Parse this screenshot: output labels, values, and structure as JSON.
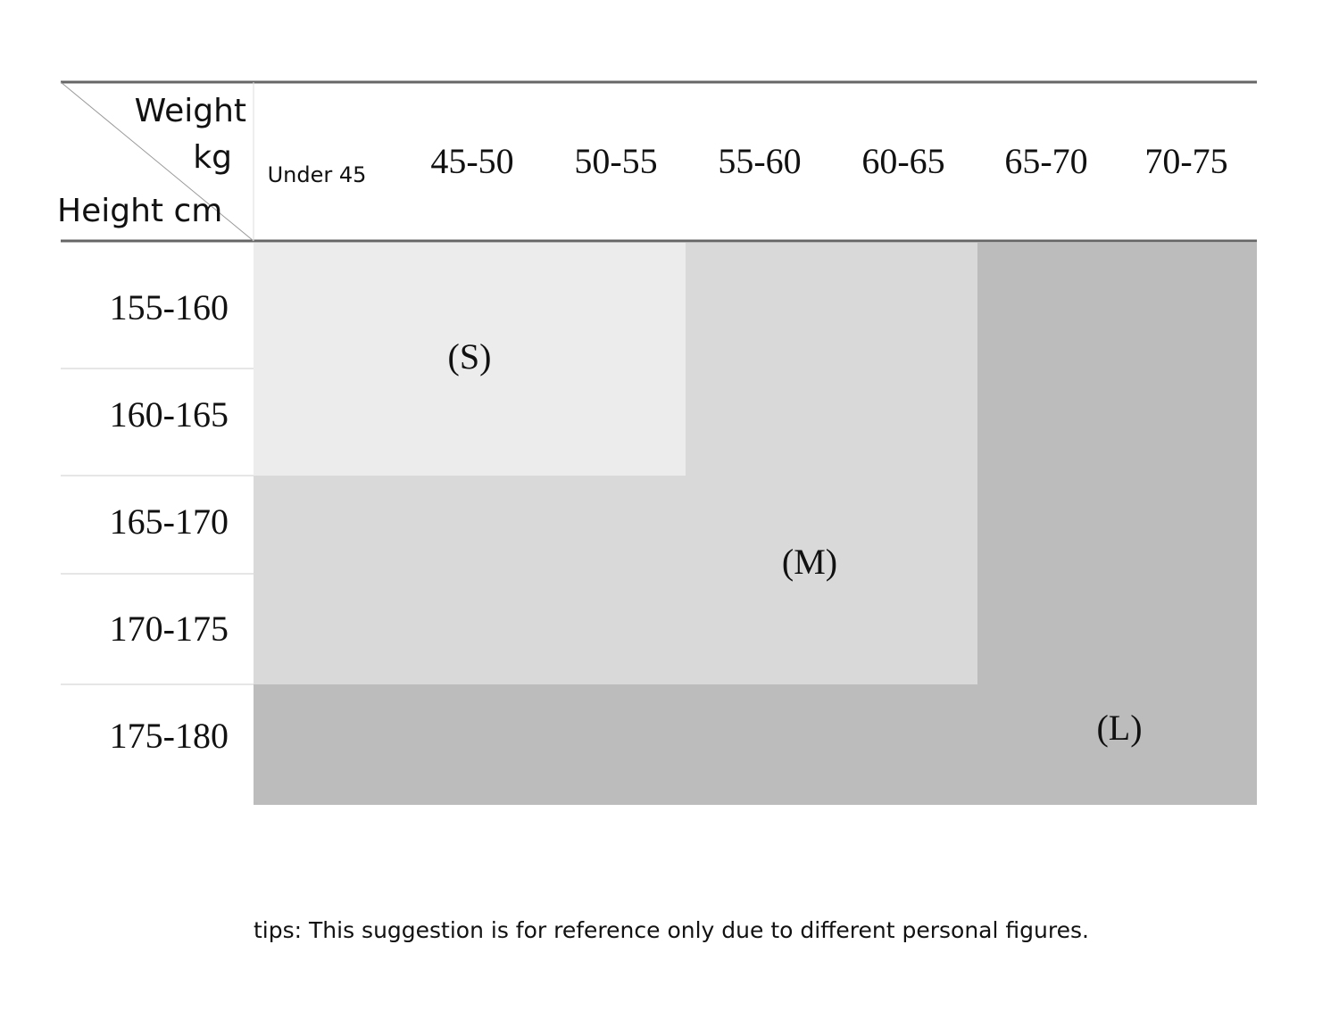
{
  "header": {
    "weight": "Weight",
    "unit": "kg",
    "height": "Height cm"
  },
  "columns": [
    "Under 45",
    "45-50",
    "50-55",
    "55-60",
    "60-65",
    "65-70",
    "70-75"
  ],
  "rows": [
    "155-160",
    "160-165",
    "165-170",
    "170-175",
    "175-180"
  ],
  "sizes": [
    "(S)",
    "(M)",
    "(L)"
  ],
  "tips": "tips: This suggestion is for reference only due to different personal figures."
}
